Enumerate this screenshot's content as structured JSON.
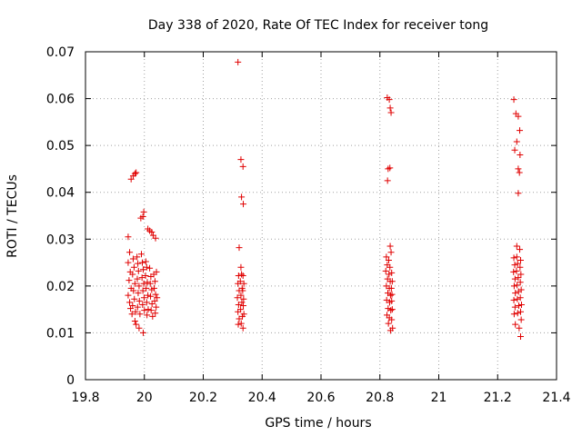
{
  "chart_data": {
    "type": "scatter",
    "title": "Day 338 of 2020, Rate Of TEC Index for receiver tong",
    "xlabel": "GPS time / hours",
    "ylabel": "ROTI / TECUs",
    "xlim": [
      19.8,
      21.4
    ],
    "ylim": [
      0,
      0.07
    ],
    "xticks": [
      19.8,
      20,
      20.2,
      20.4,
      20.6,
      20.8,
      21,
      21.2,
      21.4
    ],
    "xtick_labels": [
      "19.8",
      "20",
      "20.2",
      "20.4",
      "20.6",
      "20.8",
      "21",
      "21.2",
      "21.4"
    ],
    "yticks": [
      0,
      0.01,
      0.02,
      0.03,
      0.04,
      0.05,
      0.06,
      0.07
    ],
    "ytick_labels": [
      "0",
      "0.01",
      "0.02",
      "0.03",
      "0.04",
      "0.05",
      "0.06",
      "0.07"
    ],
    "grid": true,
    "marker": "plus",
    "color": "#e00000",
    "points": [
      [
        19.945,
        0.0305
      ],
      [
        19.95,
        0.0272
      ],
      [
        19.945,
        0.025
      ],
      [
        19.952,
        0.023
      ],
      [
        19.948,
        0.0212
      ],
      [
        19.955,
        0.0195
      ],
      [
        19.945,
        0.018
      ],
      [
        19.95,
        0.0165
      ],
      [
        19.953,
        0.0152
      ],
      [
        19.958,
        0.014
      ],
      [
        19.955,
        0.0428
      ],
      [
        19.962,
        0.0435
      ],
      [
        19.968,
        0.044
      ],
      [
        19.972,
        0.0442
      ],
      [
        19.962,
        0.0258
      ],
      [
        19.965,
        0.024
      ],
      [
        19.96,
        0.0225
      ],
      [
        19.968,
        0.0205
      ],
      [
        19.963,
        0.019
      ],
      [
        19.966,
        0.0172
      ],
      [
        19.96,
        0.0158
      ],
      [
        19.97,
        0.0145
      ],
      [
        19.968,
        0.0125
      ],
      [
        19.972,
        0.0118
      ],
      [
        19.975,
        0.0262
      ],
      [
        19.978,
        0.0248
      ],
      [
        19.98,
        0.0232
      ],
      [
        19.976,
        0.0215
      ],
      [
        19.982,
        0.02
      ],
      [
        19.979,
        0.0185
      ],
      [
        19.983,
        0.0168
      ],
      [
        19.977,
        0.0155
      ],
      [
        19.985,
        0.014
      ],
      [
        19.982,
        0.011
      ],
      [
        19.988,
        0.0345
      ],
      [
        19.995,
        0.0348
      ],
      [
        19.998,
        0.0358
      ],
      [
        19.99,
        0.0268
      ],
      [
        19.993,
        0.025
      ],
      [
        19.996,
        0.0235
      ],
      [
        19.992,
        0.0218
      ],
      [
        19.998,
        0.0205
      ],
      [
        19.995,
        0.019
      ],
      [
        19.999,
        0.0175
      ],
      [
        19.994,
        0.016
      ],
      [
        20.0,
        0.0148
      ],
      [
        19.996,
        0.01
      ],
      [
        20.005,
        0.0252
      ],
      [
        20.008,
        0.024
      ],
      [
        20.004,
        0.0222
      ],
      [
        20.01,
        0.0208
      ],
      [
        20.006,
        0.0195
      ],
      [
        20.012,
        0.018
      ],
      [
        20.008,
        0.0165
      ],
      [
        20.013,
        0.015
      ],
      [
        20.009,
        0.0138
      ],
      [
        20.012,
        0.0322
      ],
      [
        20.018,
        0.0318
      ],
      [
        20.025,
        0.0315
      ],
      [
        20.018,
        0.0238
      ],
      [
        20.022,
        0.022
      ],
      [
        20.02,
        0.0205
      ],
      [
        20.025,
        0.0192
      ],
      [
        20.021,
        0.0178
      ],
      [
        20.026,
        0.0162
      ],
      [
        20.023,
        0.0148
      ],
      [
        20.028,
        0.0135
      ],
      [
        20.03,
        0.0308
      ],
      [
        20.038,
        0.0302
      ],
      [
        20.032,
        0.0225
      ],
      [
        20.036,
        0.021
      ],
      [
        20.033,
        0.0195
      ],
      [
        20.038,
        0.0182
      ],
      [
        20.035,
        0.0168
      ],
      [
        20.04,
        0.0155
      ],
      [
        20.037,
        0.0142
      ],
      [
        20.041,
        0.023
      ],
      [
        20.043,
        0.0175
      ],
      [
        20.318,
        0.0678
      ],
      [
        20.328,
        0.047
      ],
      [
        20.335,
        0.0455
      ],
      [
        20.33,
        0.039
      ],
      [
        20.336,
        0.0375
      ],
      [
        20.322,
        0.0282
      ],
      [
        20.32,
        0.0222
      ],
      [
        20.318,
        0.0205
      ],
      [
        20.322,
        0.019
      ],
      [
        20.316,
        0.0175
      ],
      [
        20.32,
        0.016
      ],
      [
        20.318,
        0.0145
      ],
      [
        20.322,
        0.013
      ],
      [
        20.319,
        0.0118
      ],
      [
        20.328,
        0.024
      ],
      [
        20.33,
        0.0225
      ],
      [
        20.326,
        0.021
      ],
      [
        20.332,
        0.0195
      ],
      [
        20.328,
        0.018
      ],
      [
        20.331,
        0.0165
      ],
      [
        20.327,
        0.015
      ],
      [
        20.333,
        0.0135
      ],
      [
        20.329,
        0.012
      ],
      [
        20.335,
        0.0222
      ],
      [
        20.338,
        0.0205
      ],
      [
        20.334,
        0.019
      ],
      [
        20.337,
        0.0172
      ],
      [
        20.336,
        0.0158
      ],
      [
        20.338,
        0.014
      ],
      [
        20.335,
        0.011
      ],
      [
        20.825,
        0.0602
      ],
      [
        20.832,
        0.0598
      ],
      [
        20.835,
        0.058
      ],
      [
        20.838,
        0.057
      ],
      [
        20.828,
        0.045
      ],
      [
        20.834,
        0.0452
      ],
      [
        20.826,
        0.0425
      ],
      [
        20.835,
        0.0285
      ],
      [
        20.838,
        0.0272
      ],
      [
        20.822,
        0.0262
      ],
      [
        20.825,
        0.0245
      ],
      [
        20.82,
        0.0232
      ],
      [
        20.826,
        0.0215
      ],
      [
        20.822,
        0.02
      ],
      [
        20.827,
        0.0185
      ],
      [
        20.823,
        0.017
      ],
      [
        20.828,
        0.0152
      ],
      [
        20.824,
        0.0138
      ],
      [
        20.829,
        0.012
      ],
      [
        20.83,
        0.0255
      ],
      [
        20.834,
        0.024
      ],
      [
        20.831,
        0.0225
      ],
      [
        20.835,
        0.021
      ],
      [
        20.832,
        0.0195
      ],
      [
        20.836,
        0.018
      ],
      [
        20.833,
        0.0165
      ],
      [
        20.837,
        0.0148
      ],
      [
        20.832,
        0.0132
      ],
      [
        20.836,
        0.0105
      ],
      [
        20.84,
        0.0228
      ],
      [
        20.842,
        0.021
      ],
      [
        20.839,
        0.0195
      ],
      [
        20.841,
        0.0182
      ],
      [
        20.84,
        0.0168
      ],
      [
        20.842,
        0.015
      ],
      [
        20.84,
        0.0128
      ],
      [
        20.843,
        0.011
      ],
      [
        21.255,
        0.0598
      ],
      [
        21.262,
        0.0568
      ],
      [
        21.27,
        0.0562
      ],
      [
        21.275,
        0.0532
      ],
      [
        21.265,
        0.0508
      ],
      [
        21.258,
        0.049
      ],
      [
        21.276,
        0.048
      ],
      [
        21.27,
        0.045
      ],
      [
        21.274,
        0.0442
      ],
      [
        21.27,
        0.0398
      ],
      [
        21.265,
        0.0285
      ],
      [
        21.255,
        0.026
      ],
      [
        21.258,
        0.0245
      ],
      [
        21.254,
        0.023
      ],
      [
        21.259,
        0.0215
      ],
      [
        21.256,
        0.02
      ],
      [
        21.26,
        0.0185
      ],
      [
        21.255,
        0.017
      ],
      [
        21.259,
        0.0155
      ],
      [
        21.256,
        0.014
      ],
      [
        21.26,
        0.0118
      ],
      [
        21.265,
        0.0262
      ],
      [
        21.268,
        0.0248
      ],
      [
        21.264,
        0.0232
      ],
      [
        21.27,
        0.0218
      ],
      [
        21.266,
        0.0202
      ],
      [
        21.271,
        0.0188
      ],
      [
        21.267,
        0.0172
      ],
      [
        21.272,
        0.0158
      ],
      [
        21.268,
        0.0142
      ],
      [
        21.273,
        0.011
      ],
      [
        21.275,
        0.0278
      ],
      [
        21.278,
        0.0255
      ],
      [
        21.276,
        0.024
      ],
      [
        21.279,
        0.0225
      ],
      [
        21.277,
        0.0208
      ],
      [
        21.28,
        0.0192
      ],
      [
        21.277,
        0.0175
      ],
      [
        21.281,
        0.016
      ],
      [
        21.278,
        0.0145
      ],
      [
        21.28,
        0.0128
      ],
      [
        21.278,
        0.0092
      ]
    ]
  }
}
